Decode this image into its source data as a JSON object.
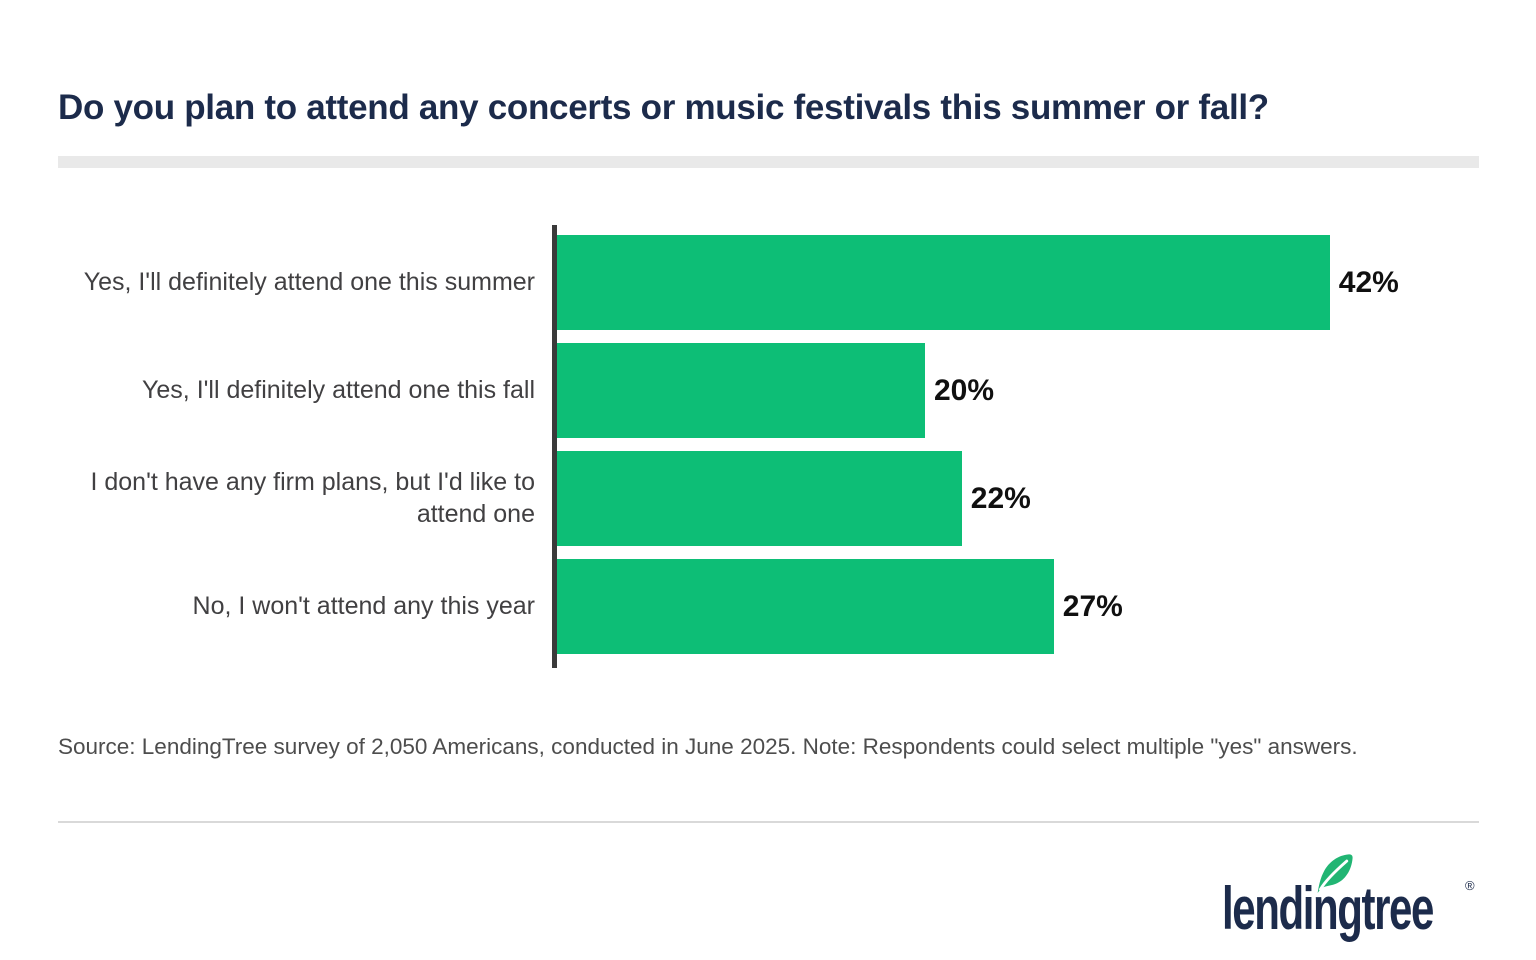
{
  "title": "Do you plan to attend any concerts or music festivals this summer or fall?",
  "chart_data": {
    "type": "bar",
    "orientation": "horizontal",
    "categories": [
      "Yes, I'll definitely attend one this summer",
      "Yes, I'll definitely attend one this fall",
      "I don't have any firm plans, but I'd like to attend one",
      "No, I won't attend any this year"
    ],
    "values": [
      42,
      20,
      22,
      27
    ],
    "value_labels": [
      "42%",
      "20%",
      "22%",
      "27%"
    ],
    "title": "Do you plan to attend any concerts or music festivals this summer or fall?",
    "xlabel": "",
    "ylabel": "",
    "xlim": [
      0,
      50
    ],
    "grid": false,
    "legend": false,
    "bar_color": "#0dbe76",
    "axis_color": "#3a3a3a",
    "value_label_color": "#101010",
    "category_label_color": "#414042"
  },
  "source_note": "Source: LendingTree survey of 2,050 Americans, conducted in June 2025. Note: Respondents could select multiple \"yes\" answers.",
  "logo": {
    "text": "lendingtree",
    "registered_mark": "®",
    "leaf_color": "#21b573",
    "text_color": "#1c2b4b"
  },
  "colors": {
    "accent_green": "#0dbe76",
    "brand_navy": "#1c2b4b",
    "divider_gray": "#e9e9e9",
    "thin_divider_gray": "#d9d9d9",
    "source_text_gray": "#4d4d4d"
  }
}
